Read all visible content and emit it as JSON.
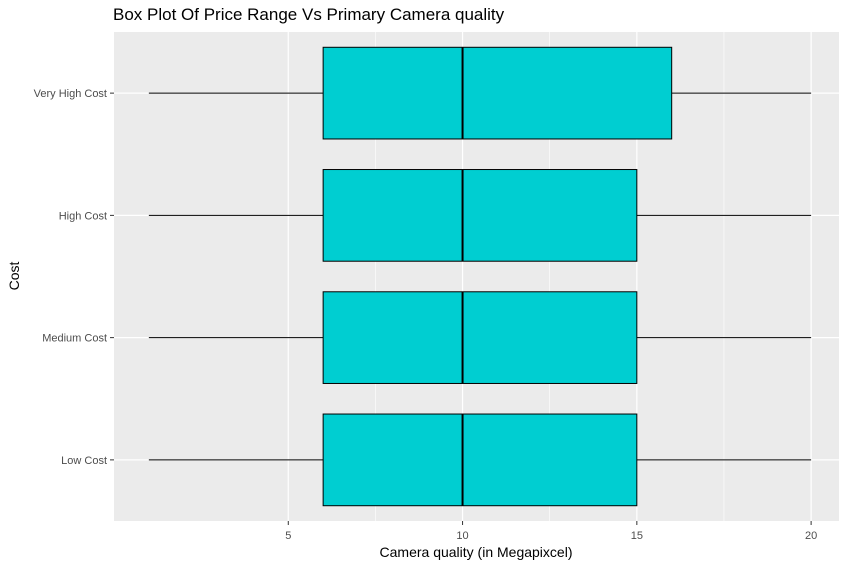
{
  "chart_data": {
    "type": "boxplot",
    "orientation": "horizontal",
    "title": "Box Plot Of Price Range Vs Primary Camera quality",
    "xlabel": "Camera quality (in Megapixcel)",
    "ylabel": "Cost",
    "xlim": [
      0,
      20.8
    ],
    "x_ticks": [
      5,
      10,
      15,
      20
    ],
    "grid": true,
    "box_fill": "#00CED1",
    "panel_background": "#EBEBEB",
    "categories": [
      "Low Cost",
      "Medium Cost",
      "High Cost",
      "Very High Cost"
    ],
    "boxes": [
      {
        "category": "Low Cost",
        "min": 1,
        "q1": 6,
        "median": 10,
        "q3": 15,
        "max": 20
      },
      {
        "category": "Medium Cost",
        "min": 1,
        "q1": 6,
        "median": 10,
        "q3": 15,
        "max": 20
      },
      {
        "category": "High Cost",
        "min": 1,
        "q1": 6,
        "median": 10,
        "q3": 15,
        "max": 20
      },
      {
        "category": "Very High Cost",
        "min": 1,
        "q1": 6,
        "median": 10,
        "q3": 16,
        "max": 20
      }
    ]
  }
}
